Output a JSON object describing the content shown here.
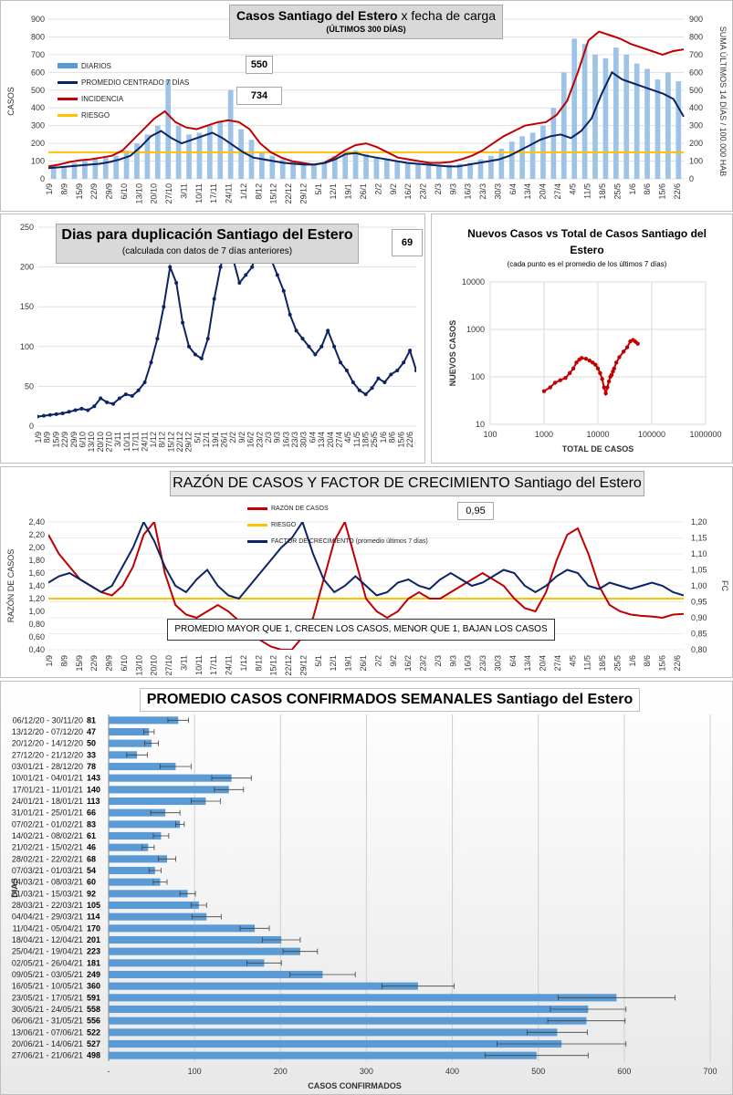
{
  "chart_data": [
    {
      "type": "line",
      "title": "Casos Santiago del Estero",
      "title_suffix": "x fecha de carga",
      "subtitle": "(ÚLTIMOS 300 DÍAS)",
      "ylabel": "CASOS",
      "y2label": "SUMA ÚLTIMOS 14 DÍAS / 100.000 HAB",
      "ylim": [
        0,
        900
      ],
      "y2lim": [
        0,
        900
      ],
      "yticks": [
        "0",
        "100",
        "200",
        "300",
        "400",
        "500",
        "600",
        "700",
        "800",
        "900"
      ],
      "x_ticks": [
        "1/9",
        "8/9",
        "15/9",
        "22/9",
        "29/9",
        "6/10",
        "13/10",
        "20/10",
        "27/10",
        "3/11",
        "10/11",
        "17/11",
        "24/11",
        "1/12",
        "8/12",
        "15/12",
        "22/12",
        "29/12",
        "5/1",
        "12/1",
        "19/1",
        "26/1",
        "2/2",
        "9/2",
        "16/2",
        "23/2",
        "2/3",
        "9/3",
        "16/3",
        "23/3",
        "30/3",
        "6/4",
        "13/4",
        "20/4",
        "27/4",
        "4/5",
        "11/5",
        "18/5",
        "25/5",
        "1/6",
        "8/6",
        "15/6",
        "22/6"
      ],
      "legend": [
        "DIARIOS",
        "PROMEDIO CENTRADO 7 DÍAS",
        "INCIDENCIA",
        "RIESGO"
      ],
      "value_boxes": [
        "550",
        "734"
      ],
      "riesgo": 150,
      "series": [
        {
          "name": "PROMEDIO CENTRADO 7 DÍAS",
          "values": [
            60,
            65,
            70,
            75,
            80,
            85,
            95,
            110,
            130,
            180,
            240,
            270,
            230,
            200,
            220,
            240,
            260,
            230,
            190,
            150,
            120,
            110,
            100,
            90,
            85,
            80,
            80,
            90,
            110,
            140,
            145,
            130,
            120,
            110,
            100,
            90,
            85,
            80,
            75,
            70,
            70,
            80,
            90,
            100,
            110,
            130,
            160,
            190,
            220,
            240,
            250,
            230,
            270,
            340,
            480,
            600,
            560,
            540,
            520,
            500,
            480,
            450,
            350
          ]
        },
        {
          "name": "INCIDENCIA",
          "values": [
            70,
            80,
            95,
            105,
            110,
            120,
            130,
            160,
            220,
            280,
            340,
            380,
            320,
            290,
            280,
            300,
            320,
            330,
            320,
            280,
            200,
            150,
            120,
            100,
            90,
            80,
            90,
            120,
            160,
            190,
            200,
            180,
            150,
            120,
            110,
            100,
            90,
            90,
            95,
            110,
            130,
            160,
            200,
            240,
            270,
            300,
            310,
            320,
            360,
            440,
            600,
            780,
            830,
            810,
            790,
            760,
            740,
            720,
            700,
            720,
            730
          ]
        },
        {
          "name": "DIARIOS",
          "values": [
            80,
            70,
            90,
            100,
            110,
            120,
            130,
            160,
            200,
            250,
            300,
            560,
            300,
            250,
            260,
            300,
            320,
            500,
            280,
            220,
            150,
            130,
            110,
            100,
            90,
            85,
            90,
            130,
            150,
            160,
            140,
            120,
            110,
            100,
            95,
            90,
            85,
            80,
            80,
            85,
            90,
            110,
            130,
            170,
            210,
            240,
            260,
            300,
            400,
            600,
            790,
            760,
            700,
            680,
            740,
            700,
            650,
            620,
            560,
            600,
            550
          ]
        }
      ]
    },
    {
      "type": "line",
      "title": "Dias para duplicación Santiago del Estero",
      "subtitle": "(calculada con datos de 7 días anteriores)",
      "value_box": "69",
      "ylim": [
        0,
        250
      ],
      "yticks": [
        "0",
        "50",
        "100",
        "150",
        "200",
        "250"
      ],
      "x_ticks": [
        "1/9",
        "8/9",
        "15/9",
        "22/9",
        "29/9",
        "6/10",
        "13/10",
        "20/10",
        "27/10",
        "3/11",
        "10/11",
        "17/11",
        "24/11",
        "1/12",
        "8/12",
        "15/12",
        "22/12",
        "29/12",
        "5/1",
        "12/1",
        "19/1",
        "26/1",
        "2/2",
        "9/2",
        "16/2",
        "23/2",
        "2/3",
        "9/3",
        "16/3",
        "23/3",
        "30/3",
        "6/4",
        "13/4",
        "20/4",
        "27/4",
        "4/5",
        "11/5",
        "18/5",
        "25/5",
        "1/6",
        "8/6",
        "15/6",
        "22/6"
      ],
      "series": [
        {
          "name": "",
          "values": [
            12,
            13,
            14,
            15,
            16,
            18,
            20,
            22,
            20,
            25,
            35,
            30,
            28,
            35,
            40,
            38,
            45,
            55,
            80,
            110,
            150,
            200,
            180,
            130,
            100,
            90,
            85,
            110,
            160,
            200,
            230,
            210,
            180,
            190,
            200,
            230,
            250,
            210,
            190,
            170,
            140,
            120,
            110,
            100,
            90,
            100,
            120,
            100,
            80,
            70,
            55,
            45,
            40,
            48,
            60,
            55,
            65,
            70,
            80,
            95,
            70
          ]
        }
      ]
    },
    {
      "type": "scatter",
      "title": "Nuevos Casos vs Total de Casos Santiago del Estero",
      "subtitle": "(cada punto es el promedio de los últimos 7 días)",
      "xlabel": "TOTAL DE CASOS",
      "ylabel": "NUEVOS CASOS",
      "log_x": true,
      "log_y": true,
      "xlim": [
        100,
        1000000
      ],
      "ylim": [
        10,
        10000
      ],
      "x_ticks": [
        "100",
        "1000",
        "10000",
        "100000",
        "1000000"
      ],
      "y_ticks": [
        "10",
        "100",
        "1000",
        "10000"
      ],
      "points": [
        [
          1000,
          50
        ],
        [
          1300,
          60
        ],
        [
          1600,
          75
        ],
        [
          2000,
          85
        ],
        [
          2500,
          95
        ],
        [
          3000,
          120
        ],
        [
          3500,
          150
        ],
        [
          4000,
          200
        ],
        [
          4500,
          230
        ],
        [
          5000,
          250
        ],
        [
          6000,
          240
        ],
        [
          7000,
          220
        ],
        [
          8000,
          200
        ],
        [
          9000,
          180
        ],
        [
          10000,
          150
        ],
        [
          11000,
          120
        ],
        [
          12000,
          90
        ],
        [
          13000,
          60
        ],
        [
          14000,
          45
        ],
        [
          15000,
          60
        ],
        [
          16000,
          80
        ],
        [
          17000,
          100
        ],
        [
          18000,
          110
        ],
        [
          19000,
          130
        ],
        [
          20000,
          150
        ],
        [
          22000,
          200
        ],
        [
          25000,
          260
        ],
        [
          30000,
          340
        ],
        [
          35000,
          420
        ],
        [
          40000,
          560
        ],
        [
          45000,
          600
        ],
        [
          50000,
          550
        ],
        [
          55000,
          500
        ]
      ]
    },
    {
      "type": "line",
      "title": "RAZÓN DE CASOS Y FACTOR DE CRECIMIENTO Santiago del Estero",
      "ylabel": "RAZÓN DE CASOS",
      "y2label": "FC",
      "ylim": [
        0.4,
        2.4
      ],
      "y2lim": [
        0.8,
        1.2
      ],
      "yticks": [
        "0,40",
        "0,60",
        "0,80",
        "1,00",
        "1,20",
        "1,40",
        "1,60",
        "1,80",
        "2,00",
        "2,20",
        "2,40"
      ],
      "y2ticks": [
        "0,80",
        "0,85",
        "0,90",
        "0,95",
        "1,00",
        "1,05",
        "1,10",
        "1,15",
        "1,20"
      ],
      "legend": [
        "RAZÓN DE CASOS",
        "RIESGO",
        "FACTOR DE CRECIMIENTO (promedio últimos 7 días)"
      ],
      "value_box": "0,95",
      "annotation": "PROMEDIO MAYOR QUE 1, CRECEN LOS CASOS, MENOR QUE 1, BAJAN LOS CASOS",
      "riesgo": 1.2,
      "x_ticks": [
        "1/9",
        "8/9",
        "15/9",
        "22/9",
        "29/9",
        "6/10",
        "13/10",
        "20/10",
        "27/10",
        "3/11",
        "10/11",
        "17/11",
        "24/11",
        "1/12",
        "8/12",
        "15/12",
        "22/12",
        "29/12",
        "5/1",
        "12/1",
        "19/1",
        "26/1",
        "2/2",
        "9/2",
        "16/2",
        "23/2",
        "2/3",
        "9/3",
        "16/3",
        "23/3",
        "30/3",
        "6/4",
        "13/4",
        "20/4",
        "27/4",
        "4/5",
        "11/5",
        "18/5",
        "25/5",
        "1/6",
        "8/6",
        "15/6",
        "22/6"
      ],
      "series": [
        {
          "name": "RAZÓN DE CASOS",
          "values": [
            2.2,
            1.9,
            1.7,
            1.5,
            1.4,
            1.3,
            1.25,
            1.4,
            1.7,
            2.2,
            2.4,
            1.6,
            1.1,
            0.95,
            0.9,
            1.0,
            1.1,
            1.0,
            0.85,
            0.7,
            0.55,
            0.45,
            0.4,
            0.4,
            0.6,
            0.9,
            1.5,
            2.1,
            2.4,
            1.8,
            1.2,
            1.0,
            0.9,
            1.0,
            1.2,
            1.3,
            1.2,
            1.2,
            1.3,
            1.4,
            1.5,
            1.6,
            1.5,
            1.4,
            1.2,
            1.05,
            1.0,
            1.3,
            1.8,
            2.2,
            2.3,
            1.9,
            1.4,
            1.1,
            1.0,
            0.95,
            0.93,
            0.92,
            0.9,
            0.95,
            0.96
          ]
        },
        {
          "name": "FACTOR DE CRECIMIENTO (promedio últimos 7 días)",
          "values": [
            1.01,
            1.03,
            1.04,
            1.02,
            1.0,
            0.98,
            1.0,
            1.06,
            1.12,
            1.2,
            1.14,
            1.06,
            1.0,
            0.98,
            1.02,
            1.05,
            1.0,
            0.97,
            0.96,
            1.0,
            1.04,
            1.08,
            1.12,
            1.15,
            1.2,
            1.1,
            1.02,
            0.98,
            1.0,
            1.03,
            1.0,
            0.97,
            0.98,
            1.01,
            1.02,
            1.0,
            0.99,
            1.02,
            1.04,
            1.02,
            1.0,
            1.01,
            1.03,
            1.05,
            1.04,
            1.0,
            0.98,
            1.0,
            1.03,
            1.05,
            1.04,
            1.0,
            0.99,
            1.01,
            1.0,
            0.99,
            1.0,
            1.01,
            1.0,
            0.98,
            0.97
          ]
        }
      ]
    },
    {
      "type": "bar",
      "orientation": "horizontal",
      "title": "PROMEDIO CASOS CONFIRMADOS SEMANALES Santiago del Estero",
      "xlabel": "CASOS CONFIRMADOS",
      "ylabel": "DIAS",
      "xlim": [
        0,
        700
      ],
      "x_ticks": [
        "-",
        "100",
        "200",
        "300",
        "400",
        "500",
        "600",
        "700"
      ],
      "categories": [
        "06/12/20 - 30/11/20",
        "13/12/20 - 07/12/20",
        "20/12/20 - 14/12/20",
        "27/12/20 - 21/12/20",
        "03/01/21 - 28/12/20",
        "10/01/21 - 04/01/21",
        "17/01/21 - 11/01/21",
        "24/01/21 - 18/01/21",
        "31/01/21 - 25/01/21",
        "07/02/21 - 01/02/21",
        "14/02/21 - 08/02/21",
        "21/02/21 - 15/02/21",
        "28/02/21 - 22/02/21",
        "07/03/21 - 01/03/21",
        "14/03/21 - 08/03/21",
        "21/03/21 - 15/03/21",
        "28/03/21 - 22/03/21",
        "04/04/21 - 29/03/21",
        "11/04/21 - 05/04/21",
        "18/04/21 - 12/04/21",
        "25/04/21 - 19/04/21",
        "02/05/21 - 26/04/21",
        "09/05/21 - 03/05/21",
        "16/05/21 - 10/05/21",
        "23/05/21 - 17/05/21",
        "30/05/21 - 24/05/21",
        "06/06/21 - 31/05/21",
        "13/06/21 - 07/06/21",
        "20/06/21 - 14/06/21",
        "27/06/21 - 21/06/21"
      ],
      "values": [
        81,
        47,
        50,
        33,
        78,
        143,
        140,
        113,
        66,
        83,
        61,
        46,
        68,
        54,
        60,
        92,
        105,
        114,
        170,
        201,
        223,
        181,
        249,
        360,
        591,
        558,
        556,
        522,
        527,
        498
      ],
      "errors": [
        12,
        6,
        8,
        12,
        18,
        23,
        17,
        17,
        17,
        5,
        9,
        7,
        10,
        7,
        8,
        9,
        9,
        17,
        17,
        22,
        20,
        20,
        38,
        42,
        68,
        44,
        45,
        35,
        75,
        60
      ]
    }
  ]
}
